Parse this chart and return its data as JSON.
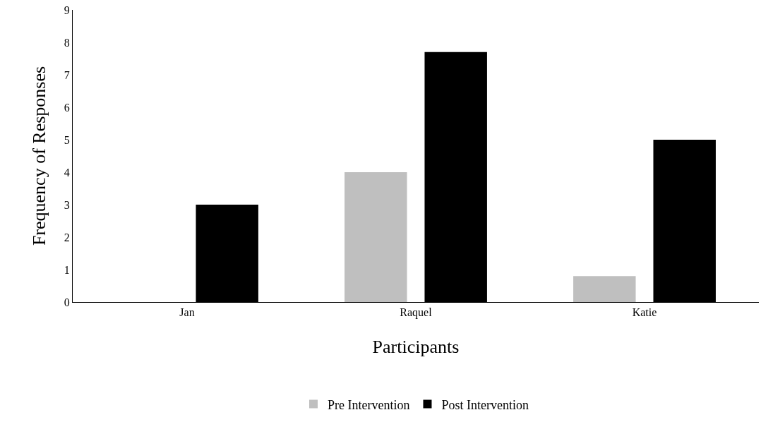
{
  "chart_data": {
    "type": "bar",
    "xlabel": "Participants",
    "ylabel": "Frequency of Responses",
    "categories": [
      "Jan",
      "Raquel",
      "Katie"
    ],
    "series": [
      {
        "name": "Pre Intervention",
        "color": "#bfbfbf",
        "values": [
          0,
          4,
          0.8
        ]
      },
      {
        "name": "Post Intervention",
        "color": "#000000",
        "values": [
          3,
          7.7,
          5
        ]
      }
    ],
    "ylim": [
      0,
      9
    ],
    "yticks": [
      0,
      1,
      2,
      3,
      4,
      5,
      6,
      7,
      8,
      9
    ],
    "grid": false,
    "legend": "bottom"
  }
}
